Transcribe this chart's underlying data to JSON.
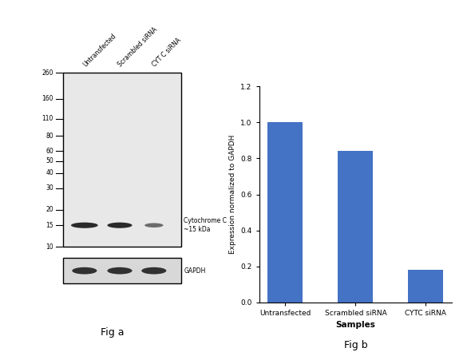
{
  "fig_a": {
    "ladder_labels": [
      "260",
      "160",
      "110",
      "80",
      "60",
      "50",
      "40",
      "30",
      "20",
      "15",
      "10"
    ],
    "ladder_positions": [
      260,
      160,
      110,
      80,
      60,
      50,
      40,
      30,
      20,
      15,
      10
    ],
    "lane_labels": [
      "Untransfected",
      "Scrambled siRNA",
      "CYT C siRNA"
    ],
    "band_annotation": "Cytochrome C\n~15 kDa",
    "gapdh_label": "GAPDH",
    "fig_label": "Fig a",
    "blot_bg": "#e8e8e8",
    "gapdh_bg": "#d8d8d8"
  },
  "fig_b": {
    "categories": [
      "Untransfected",
      "Scrambled siRNA",
      "CYTC siRNA"
    ],
    "values": [
      1.0,
      0.84,
      0.18
    ],
    "bar_color": "#4472c4",
    "xlabel": "Samples",
    "ylabel": "Expression normalized to GAPDH",
    "ylim": [
      0,
      1.2
    ],
    "yticks": [
      0,
      0.2,
      0.4,
      0.6,
      0.8,
      1.0,
      1.2
    ],
    "fig_label": "Fig b"
  }
}
